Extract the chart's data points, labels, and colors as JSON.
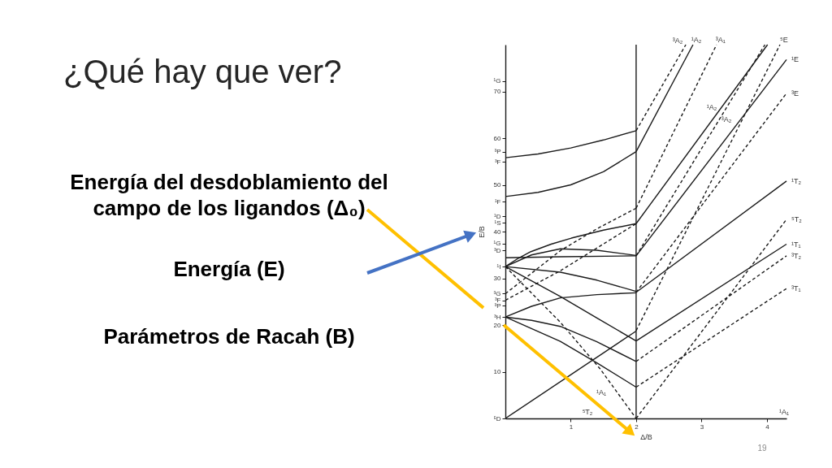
{
  "chart_data": {
    "type": "line",
    "title": "¿Qué hay que ver?",
    "xlabel": "Δ/B",
    "ylabel": "E/B",
    "xlim": [
      0,
      4.3
    ],
    "ylim": [
      0,
      80
    ],
    "xticks": [
      1,
      2,
      3,
      4
    ],
    "yticks": [
      {
        "value": 0,
        "label": "⁵D"
      },
      10,
      20,
      {
        "value": 21.7,
        "label": "³H"
      },
      {
        "value": 24.1,
        "label": "³P"
      },
      {
        "value": 25.3,
        "label": "³F"
      },
      {
        "value": 26.7,
        "label": "³G"
      },
      30,
      {
        "value": 32.5,
        "label": "¹I"
      },
      {
        "value": 36,
        "label": "³D"
      },
      {
        "value": 37.4,
        "label": "¹G"
      },
      40,
      {
        "value": 41.9,
        "label": "¹S"
      },
      {
        "value": 43.3,
        "label": "¹D"
      },
      {
        "value": 46.4,
        "label": "¹F"
      },
      50,
      {
        "value": 54.9,
        "label": "³F"
      },
      {
        "value": 57.1,
        "label": "³P"
      },
      60,
      70,
      {
        "value": 72.2,
        "label": "¹G"
      }
    ],
    "series": [
      {
        "color": "#1a1a1a",
        "line_style": "solid",
        "x": [
          0,
          2
        ],
        "values": [
          0,
          18.7
        ]
      },
      {
        "color": "#1a1a1a",
        "line_style": "dashed",
        "x": [
          0,
          0.84,
          1.45,
          2
        ],
        "values": [
          32.5,
          20.6,
          10.6,
          0
        ]
      },
      {
        "color": "#1a1a1a",
        "line_style": "solid",
        "x": [
          0,
          0.84,
          1.4,
          2
        ],
        "values": [
          21.7,
          16.5,
          11.9,
          6.7
        ]
      },
      {
        "color": "#1a1a1a",
        "line_style": "solid",
        "x": [
          0,
          0.4,
          0.84,
          1.4,
          2
        ],
        "values": [
          21.7,
          21,
          19.7,
          16.4,
          12.2
        ]
      },
      {
        "color": "#1a1a1a",
        "line_style": "solid",
        "x": [
          0,
          0.84,
          1.4,
          2
        ],
        "values": [
          32.5,
          26.1,
          21.5,
          16.6
        ]
      },
      {
        "color": "#1a1a1a",
        "line_style": "solid",
        "x": [
          0,
          0.4,
          0.84,
          1.4,
          2
        ],
        "values": [
          21.7,
          24,
          25.8,
          26.5,
          26.9
        ]
      },
      {
        "color": "#1a1a1a",
        "line_style": "solid",
        "x": [
          0,
          0.84,
          1.4,
          2
        ],
        "values": [
          32.5,
          31.3,
          29.6,
          27.2
        ]
      },
      {
        "color": "#1a1a1a",
        "line_style": "solid",
        "x": [
          0,
          0.4,
          0.84,
          1.4,
          2
        ],
        "values": [
          32.5,
          35,
          36.3,
          36,
          34.9
        ]
      },
      {
        "color": "#1a1a1a",
        "line_style": "solid",
        "x": [
          0,
          0.84,
          2
        ],
        "values": [
          34.4,
          34.6,
          34.8
        ]
      },
      {
        "color": "#1a1a1a",
        "line_style": "solid",
        "x": [
          0,
          0.2,
          0.39,
          0.7,
          1.01,
          1.5,
          2
        ],
        "values": [
          32.5,
          34.3,
          35.7,
          37.3,
          38.6,
          40.3,
          41.7
        ]
      },
      {
        "color": "#1a1a1a",
        "line_style": "dashed",
        "x": [
          0,
          0.84,
          1.4,
          2
        ],
        "values": [
          26.7,
          35.9,
          40.6,
          45
        ]
      },
      {
        "color": "#1a1a1a",
        "line_style": "dashed",
        "x": [
          0,
          0.84,
          2
        ],
        "values": [
          25.3,
          31.6,
          41.7
        ]
      },
      {
        "color": "#1a1a1a",
        "line_style": "solid",
        "x": [
          0,
          0.5,
          1,
          1.5,
          2
        ],
        "values": [
          47.5,
          48.4,
          50,
          52.8,
          57.1
        ]
      },
      {
        "color": "#1a1a1a",
        "line_style": "solid",
        "x": [
          0,
          0.5,
          1,
          1.5,
          2
        ],
        "values": [
          55.8,
          56.6,
          57.9,
          59.6,
          61.6
        ]
      },
      {
        "color": "#1a1a1a",
        "line_style": "dashed",
        "x": [
          2,
          4.3
        ],
        "values": [
          6.7,
          27.8
        ]
      },
      {
        "color": "#1a1a1a",
        "line_style": "dashed",
        "x": [
          2,
          4.3
        ],
        "values": [
          12.2,
          34.8
        ]
      },
      {
        "color": "#1a1a1a",
        "line_style": "solid",
        "x": [
          2,
          4.3
        ],
        "values": [
          16.6,
          37.3
        ]
      },
      {
        "color": "#1a1a1a",
        "line_style": "dashed",
        "x": [
          2,
          4.3
        ],
        "values": [
          0,
          42.6
        ]
      },
      {
        "color": "#1a1a1a",
        "line_style": "solid",
        "x": [
          2,
          4.3
        ],
        "values": [
          27,
          50.8
        ]
      },
      {
        "color": "#1a1a1a",
        "line_style": "dashed",
        "x": [
          2,
          4.3
        ],
        "values": [
          27,
          69.6
        ]
      },
      {
        "color": "#1a1a1a",
        "line_style": "solid",
        "x": [
          2,
          4.3
        ],
        "values": [
          34.8,
          76.8
        ]
      },
      {
        "color": "#1a1a1a",
        "line_style": "dashed",
        "x": [
          2,
          4.2
        ],
        "values": [
          18.8,
          80
        ]
      },
      {
        "color": "#1a1a1a",
        "line_style": "solid",
        "x": [
          2,
          4.01
        ],
        "values": [
          41.7,
          80
        ]
      },
      {
        "color": "#1a1a1a",
        "line_style": "dashed",
        "x": [
          2,
          3.97
        ],
        "values": [
          34.8,
          80
        ]
      },
      {
        "color": "#1a1a1a",
        "line_style": "dashed",
        "x": [
          2,
          3.23
        ],
        "values": [
          45,
          80
        ]
      },
      {
        "color": "#1a1a1a",
        "line_style": "solid",
        "x": [
          2,
          2.87
        ],
        "values": [
          57.1,
          80
        ]
      },
      {
        "color": "#1a1a1a",
        "line_style": "dashed",
        "x": [
          2,
          2.76
        ],
        "values": [
          61.6,
          80
        ]
      }
    ],
    "ref_lines": [
      {
        "axis": "x",
        "value": 2,
        "color": "#1a1a1a"
      }
    ],
    "annotations": [
      "Energía del desdoblamiento del campo de los ligandos (Δ₀)",
      "Energía (E)",
      "Parámetros de Racah (B)",
      "19",
      "³A₂",
      "¹A₂",
      "³A₂",
      "¹A₁",
      "¹A₁",
      "⁵T₂",
      {
        "text": "¹A₂",
        "x": 2.92,
        "y": 80
      },
      {
        "text": "³A₁",
        "x": 3.29,
        "y": 80
      },
      {
        "text": "⁵E",
        "x": 4.26,
        "y": 80
      },
      {
        "text": "¹E",
        "x": 4.3,
        "y": 76.8
      },
      {
        "text": "³E",
        "x": 4.3,
        "y": 69.6
      },
      {
        "text": "¹T₂",
        "x": 4.3,
        "y": 50.8
      },
      {
        "text": "⁵T₂",
        "x": 4.3,
        "y": 42.6
      },
      {
        "text": "¹T₁",
        "x": 4.3,
        "y": 37.3
      },
      {
        "text": "³T₂",
        "x": 4.3,
        "y": 34.8
      },
      {
        "text": "³T₁",
        "x": 4.3,
        "y": 27.8
      }
    ]
  }
}
